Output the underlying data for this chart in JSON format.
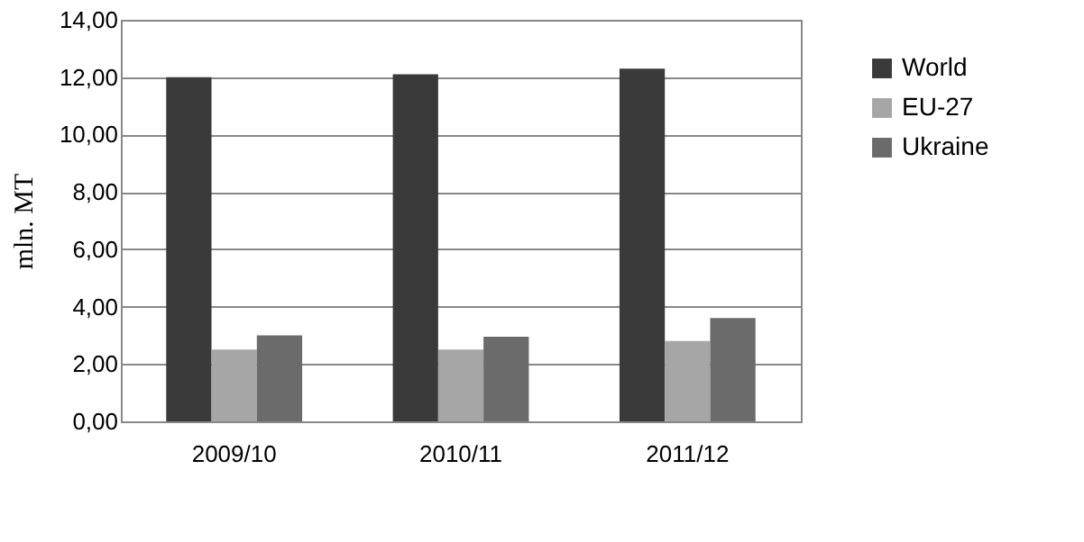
{
  "chart_data": {
    "type": "bar",
    "ylabel": "mln. MT",
    "categories": [
      "2009/10",
      "2010/11",
      "2011/12"
    ],
    "series": [
      {
        "name": "World",
        "color": "#3a3a3a",
        "values": [
          12.0,
          12.1,
          12.3
        ]
      },
      {
        "name": "EU-27",
        "color": "#a6a6a6",
        "values": [
          2.5,
          2.5,
          2.8
        ]
      },
      {
        "name": "Ukraine",
        "color": "#6b6b6b",
        "values": [
          3.0,
          2.95,
          3.6
        ]
      }
    ],
    "ylim": [
      0,
      14
    ],
    "yticks": [
      {
        "value": 0,
        "label": "0,00"
      },
      {
        "value": 2,
        "label": "2,00"
      },
      {
        "value": 4,
        "label": "4,00"
      },
      {
        "value": 6,
        "label": "6,00"
      },
      {
        "value": 8,
        "label": "8,00"
      },
      {
        "value": 10,
        "label": "10,00"
      },
      {
        "value": 12,
        "label": "12,00"
      },
      {
        "value": 14,
        "label": "14,00"
      }
    ],
    "grid": "y",
    "legend": "right"
  }
}
